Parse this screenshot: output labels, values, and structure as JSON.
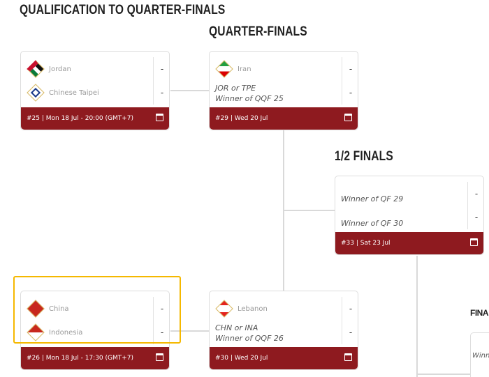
{
  "headings": {
    "qualification": "QUALIFICATION TO QUARTER-FINALS",
    "quarter": "QUARTER-FINALS",
    "semi": "1/2 FINALS",
    "final": "FINA"
  },
  "matches": [
    {
      "team1": "Jordan",
      "team2": "Chinese Taipei",
      "score1": "-",
      "score2": "-",
      "info": "#25 | Mon 18 Jul - 20:00 (GMT+7)"
    },
    {
      "team1": "China",
      "team2": "Indonesia",
      "score1": "-",
      "score2": "-",
      "info": "#26 | Mon 18 Jul - 17:30 (GMT+7)"
    },
    {
      "team1": "Iran",
      "team2_code": "JOR or TPE",
      "team2": "Winner of QQF 25",
      "score1": "-",
      "score2": "-",
      "info": "#29 | Wed 20 Jul"
    },
    {
      "team1": "Lebanon",
      "team2_code": "CHN or INA",
      "team2": "Winner of QQF 26",
      "score1": "-",
      "score2": "-",
      "info": "#30 | Wed 20 Jul"
    },
    {
      "team1": "Winner of QF 29",
      "team2": "Winner of QF 30",
      "score1": "-",
      "score2": "-",
      "info": "#33 | Sat 23 Jul"
    },
    {
      "team1": "Winn"
    }
  ],
  "colors": {
    "footer": "#8e1a1f",
    "highlight": "#f5b800"
  }
}
